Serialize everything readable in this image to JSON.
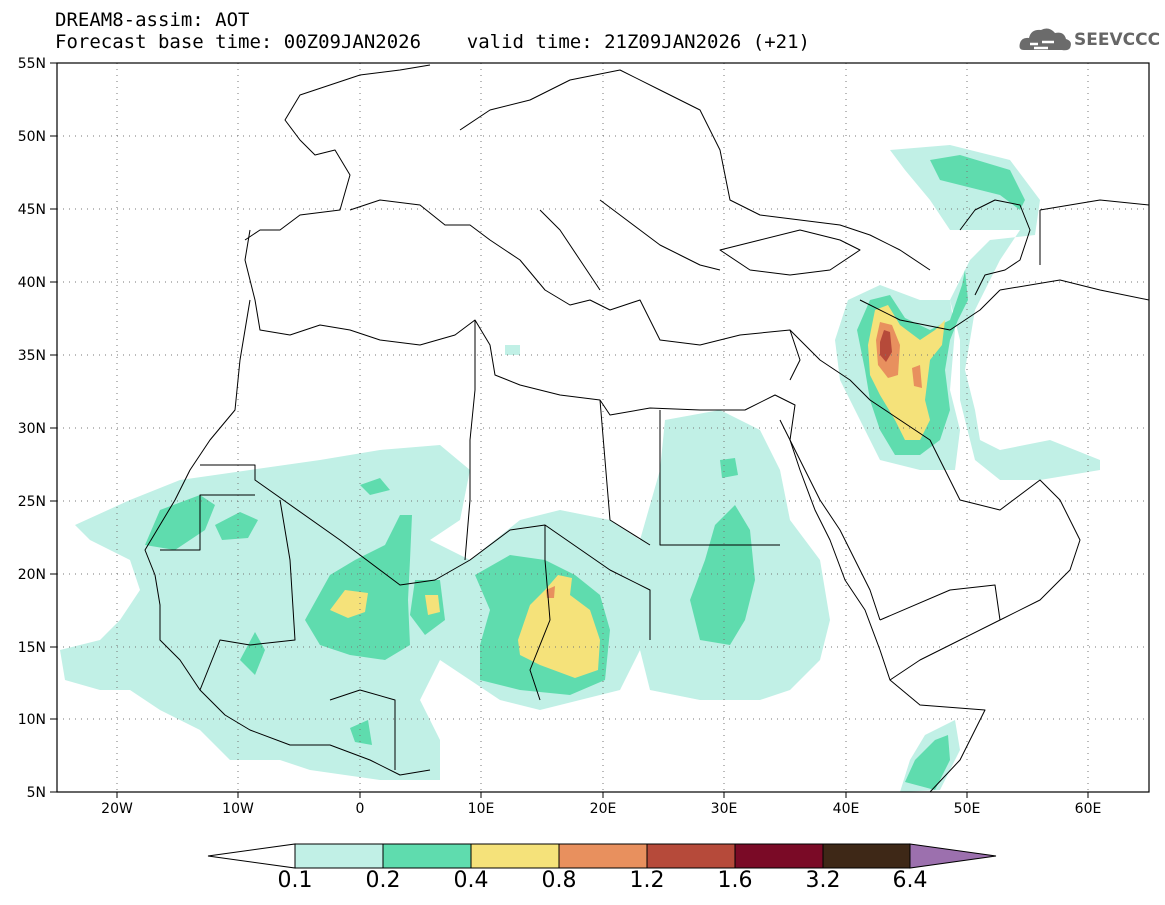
{
  "title": {
    "line1": "DREAM8-assim: AOT",
    "line2": "Forecast base time: 00Z09JAN2026    valid time: 21Z09JAN2026 (+21)"
  },
  "brand": {
    "text": "SEEVCCC",
    "icon": "cloud-logo-icon"
  },
  "map": {
    "lat_range": [
      5,
      55
    ],
    "lon_range": [
      -25,
      65
    ],
    "lat_ticks": [
      "55N",
      "50N",
      "45N",
      "40N",
      "35N",
      "30N",
      "25N",
      "20N",
      "15N",
      "10N",
      "5N"
    ],
    "lon_ticks": [
      "20W",
      "10W",
      "0",
      "10E",
      "20E",
      "30E",
      "40E",
      "50E",
      "60E"
    ],
    "grid": true
  },
  "colorbar": {
    "labels": [
      "0.1",
      "0.2",
      "0.4",
      "0.8",
      "1.2",
      "1.6",
      "3.2",
      "6.4"
    ],
    "colors": [
      "#ffffff",
      "#c1f0e6",
      "#5fdcae",
      "#f5e27a",
      "#e8905e",
      "#b64a3a",
      "#7a0a26",
      "#3e2817",
      "#9c70ae"
    ]
  }
}
